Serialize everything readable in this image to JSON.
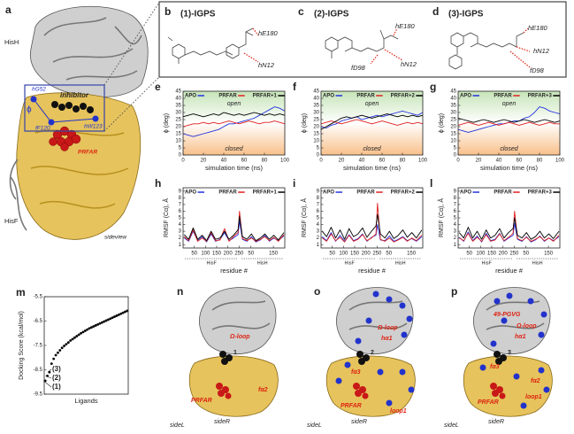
{
  "panel_a": {
    "label": "a",
    "texts": [
      "HisH",
      "inhibitor",
      "hG52",
      "ϕ",
      "fF120",
      "hW123",
      "PRFAR",
      "HisF",
      "sideview"
    ]
  },
  "structures": [
    {
      "label": "b",
      "title": "(1)-IGPS",
      "residues": [
        "hE180",
        "hN12"
      ]
    },
    {
      "label": "c",
      "title": "(2)-IGPS",
      "residues": [
        "hE180",
        "fD98",
        "hN12"
      ]
    },
    {
      "label": "d",
      "title": "(3)-IGPS",
      "residues": [
        "hE180",
        "hN12",
        "fD98"
      ]
    }
  ],
  "complexes": [
    {
      "label": "n",
      "texts": [
        "Ω-loop",
        "fα2",
        "1",
        "PRFAR",
        "sideL",
        "sideR"
      ]
    },
    {
      "label": "o",
      "texts": [
        "Ω-loop",
        "hα1",
        "2",
        "fα3",
        "PRFAR",
        "loop1",
        "sideL",
        "sideR"
      ]
    },
    {
      "label": "p",
      "texts": [
        "49-PGVG",
        "Ω-loop",
        "hα1",
        "3",
        "fα3",
        "fα2",
        "PRFAR",
        "loop1",
        "sideL",
        "sideR"
      ]
    }
  ],
  "chart_data": [
    {
      "type": "line",
      "label": "e",
      "xlabel": "simulation time (ns)",
      "ylabel": "ϕ (deg)",
      "annotations": [
        "open",
        "closed"
      ],
      "background": [
        "#c6e4b8",
        "#ffffff",
        "#f8c08a"
      ],
      "x": [
        0,
        5,
        10,
        15,
        20,
        25,
        30,
        35,
        40,
        45,
        50,
        55,
        60,
        65,
        70,
        75,
        80,
        85,
        90,
        95,
        100
      ],
      "xlim": [
        0,
        100
      ],
      "xticks": [
        0,
        20,
        40,
        60,
        80,
        100
      ],
      "ylim": [
        0,
        45
      ],
      "yticks": [
        0,
        5,
        10,
        15,
        20,
        25,
        30,
        35,
        40,
        45
      ],
      "series": [
        {
          "name": "APO",
          "color": "#2233dd",
          "values": [
            15,
            14,
            13,
            14,
            15,
            16,
            17,
            18,
            20,
            22,
            22,
            23,
            24,
            25,
            26,
            28,
            30,
            32,
            34,
            33,
            31
          ]
        },
        {
          "name": "PRFAR",
          "color": "#e02020",
          "values": [
            20,
            21,
            22,
            22,
            23,
            22,
            23,
            22,
            23,
            24,
            23,
            22,
            23,
            24,
            23,
            22,
            23,
            23,
            24,
            23,
            22
          ]
        },
        {
          "name": "PRFAR+1",
          "color": "#000000",
          "values": [
            27,
            28,
            29,
            28,
            27,
            28,
            29,
            28,
            30,
            29,
            28,
            29,
            28,
            29,
            30,
            29,
            28,
            29,
            28,
            29,
            28
          ]
        }
      ]
    },
    {
      "type": "line",
      "label": "f",
      "xlabel": "simulation time (ns)",
      "ylabel": "ϕ (deg)",
      "annotations": [
        "open",
        "closed"
      ],
      "background": [
        "#c6e4b8",
        "#ffffff",
        "#f8c08a"
      ],
      "x": [
        0,
        5,
        10,
        15,
        20,
        25,
        30,
        35,
        40,
        45,
        50,
        55,
        60,
        65,
        70,
        75,
        80,
        85,
        90,
        95,
        100
      ],
      "xlim": [
        0,
        100
      ],
      "xticks": [
        0,
        20,
        40,
        60,
        80,
        100
      ],
      "ylim": [
        0,
        45
      ],
      "yticks": [
        0,
        5,
        10,
        15,
        20,
        25,
        30,
        35,
        40,
        45
      ],
      "series": [
        {
          "name": "APO",
          "color": "#2233dd",
          "values": [
            20,
            19,
            21,
            22,
            24,
            25,
            26,
            27,
            25,
            26,
            27,
            28,
            27,
            28,
            29,
            30,
            31,
            30,
            29,
            28,
            30
          ]
        },
        {
          "name": "PRFAR",
          "color": "#e02020",
          "values": [
            22,
            23,
            24,
            23,
            22,
            23,
            24,
            25,
            24,
            23,
            22,
            23,
            24,
            23,
            22,
            21,
            22,
            23,
            22,
            23,
            22
          ]
        },
        {
          "name": "PRFAR+2",
          "color": "#000000",
          "values": [
            18,
            20,
            22,
            24,
            26,
            27,
            26,
            27,
            28,
            27,
            26,
            27,
            28,
            29,
            28,
            27,
            28,
            27,
            28,
            27,
            28
          ]
        }
      ]
    },
    {
      "type": "line",
      "label": "g",
      "xlabel": "simulation time (ns)",
      "ylabel": "ϕ (deg)",
      "annotations": [
        "open",
        "closed"
      ],
      "background": [
        "#c6e4b8",
        "#ffffff",
        "#f8c08a"
      ],
      "x": [
        0,
        5,
        10,
        15,
        20,
        25,
        30,
        35,
        40,
        45,
        50,
        55,
        60,
        65,
        70,
        75,
        80,
        85,
        90,
        95,
        100
      ],
      "xlim": [
        0,
        100
      ],
      "xticks": [
        0,
        20,
        40,
        60,
        80,
        100
      ],
      "ylim": [
        0,
        45
      ],
      "yticks": [
        0,
        5,
        10,
        15,
        20,
        25,
        30,
        35,
        40,
        45
      ],
      "series": [
        {
          "name": "APO",
          "color": "#2233dd",
          "values": [
            18,
            17,
            16,
            17,
            18,
            19,
            20,
            21,
            22,
            22,
            23,
            24,
            24,
            26,
            27,
            30,
            34,
            33,
            31,
            30,
            29
          ]
        },
        {
          "name": "PRFAR",
          "color": "#e02020",
          "values": [
            21,
            22,
            23,
            22,
            21,
            22,
            23,
            22,
            21,
            22,
            23,
            22,
            21,
            22,
            23,
            22,
            21,
            22,
            23,
            22,
            22
          ]
        },
        {
          "name": "PRFAR+3",
          "color": "#000000",
          "values": [
            26,
            25,
            24,
            23,
            24,
            25,
            24,
            23,
            24,
            25,
            24,
            23,
            24,
            25,
            24,
            23,
            24,
            25,
            24,
            23,
            24
          ]
        }
      ]
    },
    {
      "type": "line",
      "label": "h",
      "xlabel": "residue #",
      "ylabel": "RMSF (Cα), Å",
      "xspans": [
        {
          "label": "HisF",
          "range": [
            1,
            253
          ]
        },
        {
          "label": "HisH",
          "range": [
            254,
            454
          ]
        }
      ],
      "x": [
        5,
        25,
        45,
        65,
        85,
        105,
        125,
        145,
        165,
        185,
        205,
        225,
        245,
        252,
        265,
        285,
        305,
        325,
        345,
        365,
        385,
        405,
        425,
        450
      ],
      "xlim": [
        0,
        454
      ],
      "xticks": [
        50,
        100,
        150,
        200,
        250,
        {
          "value": 303,
          "label": "50"
        },
        {
          "value": 403,
          "label": "150"
        }
      ],
      "ylim": [
        0.5,
        9.5
      ],
      "yticks": [
        1,
        2,
        3,
        4,
        5,
        6,
        7,
        8,
        9
      ],
      "series": [
        {
          "name": "APO",
          "color": "#2233dd",
          "values": [
            2.0,
            1.5,
            3.0,
            1.6,
            2.2,
            1.4,
            2.6,
            1.5,
            1.8,
            2.8,
            1.6,
            2.0,
            2.5,
            4.5,
            1.8,
            1.5,
            2.2,
            1.4,
            1.7,
            2.4,
            1.5,
            2.0,
            1.6,
            2.3
          ]
        },
        {
          "name": "PRFAR",
          "color": "#e02020",
          "values": [
            2.2,
            1.6,
            3.2,
            1.5,
            2.0,
            1.5,
            2.8,
            1.6,
            1.7,
            3.4,
            1.5,
            2.2,
            2.8,
            6.0,
            1.9,
            1.6,
            2.0,
            1.5,
            1.8,
            2.2,
            1.6,
            2.1,
            1.5,
            2.5
          ]
        },
        {
          "name": "PRFAR+1",
          "color": "#000000",
          "values": [
            2.5,
            1.8,
            3.5,
            1.8,
            2.4,
            1.6,
            3.0,
            1.8,
            2.0,
            3.0,
            1.8,
            2.4,
            3.2,
            5.2,
            2.2,
            1.8,
            2.6,
            1.6,
            2.0,
            2.6,
            1.8,
            2.4,
            1.7,
            2.8
          ]
        }
      ]
    },
    {
      "type": "line",
      "label": "i",
      "xlabel": "residue #",
      "ylabel": "RMSF (Cα), Å",
      "xspans": [
        {
          "label": "HisF",
          "range": [
            1,
            253
          ]
        },
        {
          "label": "HisH",
          "range": [
            254,
            454
          ]
        }
      ],
      "x": [
        5,
        25,
        45,
        65,
        85,
        105,
        125,
        145,
        165,
        185,
        205,
        225,
        245,
        252,
        265,
        285,
        305,
        325,
        345,
        365,
        385,
        405,
        425,
        450
      ],
      "xlim": [
        0,
        454
      ],
      "xticks": [
        50,
        100,
        150,
        200,
        250,
        {
          "value": 303,
          "label": "50"
        },
        {
          "value": 403,
          "label": "150"
        }
      ],
      "ylim": [
        0.5,
        9.5
      ],
      "yticks": [
        1,
        2,
        3,
        4,
        5,
        6,
        7,
        8,
        9
      ],
      "series": [
        {
          "name": "APO",
          "color": "#2233dd",
          "values": [
            2.2,
            1.6,
            2.8,
            1.5,
            2.4,
            1.5,
            2.5,
            1.6,
            1.9,
            2.6,
            1.5,
            2.1,
            2.4,
            4.0,
            1.7,
            1.6,
            2.3,
            1.5,
            1.8,
            2.2,
            1.6,
            1.9,
            1.5,
            2.2
          ]
        },
        {
          "name": "PRFAR",
          "color": "#e02020",
          "values": [
            2.0,
            1.5,
            2.6,
            1.6,
            2.1,
            1.4,
            2.4,
            1.5,
            1.8,
            2.5,
            1.6,
            2.0,
            2.6,
            7.2,
            1.8,
            1.5,
            2.0,
            1.4,
            1.7,
            2.1,
            1.5,
            2.0,
            1.6,
            2.4
          ]
        },
        {
          "name": "PRFAR+2",
          "color": "#000000",
          "values": [
            3.0,
            2.2,
            3.6,
            2.0,
            3.2,
            1.8,
            3.4,
            2.2,
            2.6,
            3.5,
            2.1,
            3.0,
            3.8,
            5.5,
            2.6,
            2.0,
            3.0,
            1.9,
            2.4,
            3.2,
            2.1,
            2.8,
            2.0,
            3.2
          ]
        }
      ]
    },
    {
      "type": "line",
      "label": "l",
      "xlabel": "residue #",
      "ylabel": "RMSF (Cα), Å",
      "xspans": [
        {
          "label": "HisF",
          "range": [
            1,
            253
          ]
        },
        {
          "label": "HisH",
          "range": [
            254,
            454
          ]
        }
      ],
      "x": [
        5,
        25,
        45,
        65,
        85,
        105,
        125,
        145,
        165,
        185,
        205,
        225,
        245,
        252,
        265,
        285,
        305,
        325,
        345,
        365,
        385,
        405,
        425,
        450
      ],
      "xlim": [
        0,
        454
      ],
      "xticks": [
        50,
        100,
        150,
        200,
        250,
        {
          "value": 303,
          "label": "50"
        },
        {
          "value": 403,
          "label": "150"
        }
      ],
      "ylim": [
        0.5,
        9.5
      ],
      "yticks": [
        1,
        2,
        3,
        4,
        5,
        6,
        7,
        8,
        9
      ],
      "series": [
        {
          "name": "APO",
          "color": "#2233dd",
          "values": [
            2.1,
            1.5,
            2.9,
            1.6,
            2.3,
            1.4,
            2.7,
            1.6,
            1.8,
            2.7,
            1.5,
            2.0,
            2.4,
            4.2,
            1.8,
            1.5,
            2.2,
            1.4,
            1.7,
            2.3,
            1.5,
            2.0,
            1.6,
            2.2
          ]
        },
        {
          "name": "PRFAR",
          "color": "#e02020",
          "values": [
            2.0,
            1.6,
            2.7,
            1.5,
            2.1,
            1.5,
            2.5,
            1.5,
            1.7,
            2.6,
            1.6,
            2.1,
            2.7,
            6.0,
            1.9,
            1.6,
            2.1,
            1.5,
            1.8,
            2.2,
            1.6,
            2.0,
            1.5,
            2.4
          ]
        },
        {
          "name": "PRFAR+3",
          "color": "#000000",
          "values": [
            2.8,
            2.0,
            3.6,
            2.0,
            3.0,
            1.8,
            3.2,
            2.0,
            2.4,
            3.4,
            2.0,
            2.8,
            3.4,
            5.0,
            2.4,
            2.0,
            2.8,
            1.8,
            2.2,
            3.0,
            2.0,
            2.6,
            1.9,
            3.0
          ]
        }
      ]
    },
    {
      "type": "scatter",
      "label": "m",
      "xlabel": "Ligands",
      "ylabel": "Docking Score (kcal/mol)",
      "color": "#000000",
      "annotations": [
        "(3)",
        "(2)",
        "(1)"
      ],
      "ylim": [
        -9.5,
        -5.5
      ],
      "yticks": [
        -9.5,
        -8.5,
        -7.5,
        -6.5,
        -5.5
      ],
      "values": [
        -8.95,
        -8.75,
        -8.6,
        -8.25,
        -8.05,
        -7.9,
        -7.8,
        -7.7,
        -7.6,
        -7.52,
        -7.45,
        -7.38,
        -7.3,
        -7.24,
        -7.18,
        -7.12,
        -7.06,
        -7.0,
        -6.95,
        -6.9,
        -6.85,
        -6.8,
        -6.76,
        -6.72,
        -6.68,
        -6.64,
        -6.6,
        -6.56,
        -6.52,
        -6.48,
        -6.44,
        -6.4,
        -6.36,
        -6.32,
        -6.28,
        -6.24,
        -6.2,
        -6.16,
        -6.12,
        -6.08
      ]
    }
  ]
}
